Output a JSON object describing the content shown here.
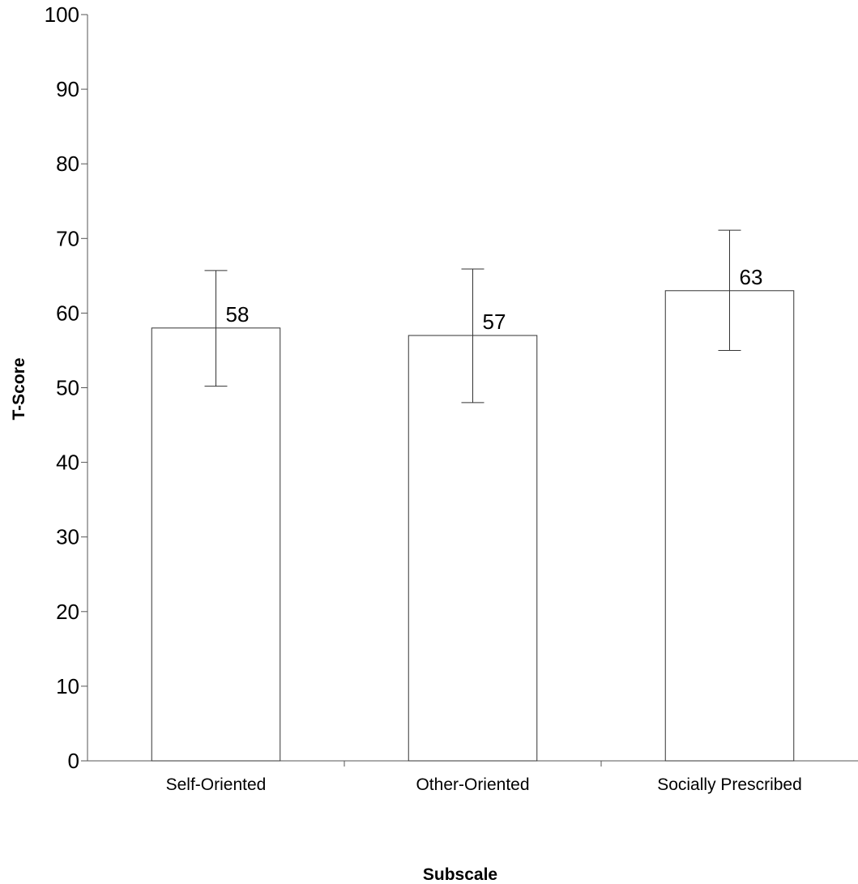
{
  "chart_data": {
    "type": "bar",
    "categories": [
      "Self-Oriented",
      "Other-Oriented",
      "Socially Prescribed"
    ],
    "values": [
      58,
      57,
      63
    ],
    "value_labels": [
      "58",
      "57",
      "63"
    ],
    "error_bars": [
      {
        "low": 50.2,
        "high": 65.7
      },
      {
        "low": 48.0,
        "high": 65.9
      },
      {
        "low": 55.0,
        "high": 71.1
      }
    ],
    "xlabel": "Subscale",
    "ylabel": "T-Score",
    "ylim": [
      0,
      100
    ],
    "yticks": [
      0,
      10,
      20,
      30,
      40,
      50,
      60,
      70,
      80,
      90,
      100
    ],
    "grid": false,
    "bar_fill": "#ffffff",
    "bar_stroke": "#333333"
  }
}
